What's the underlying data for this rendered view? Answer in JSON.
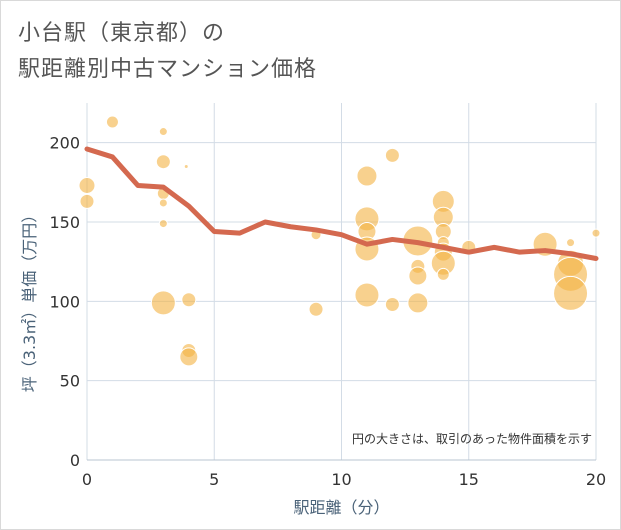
{
  "title_line1": "小台駅（東京都）の",
  "title_line2": "駅距離別中古マンション価格",
  "chart_data": {
    "type": "scatter",
    "xlabel": "駅距離（分）",
    "ylabel": "坪（3.3㎡）単価（万円）",
    "xlim": [
      0,
      20
    ],
    "ylim": [
      0,
      225
    ],
    "xticks": [
      0,
      5,
      10,
      15,
      20
    ],
    "yticks": [
      0,
      50,
      100,
      150,
      200
    ],
    "x_tick_labels": [
      "0",
      "5",
      "10",
      "15",
      "20"
    ],
    "y_tick_labels": [
      "0",
      "50",
      "100",
      "150",
      "200"
    ],
    "grid": true,
    "annotation": "円の大きさは、取引のあった物件面積を示す",
    "colors": {
      "bubble": "#f4b342",
      "line": "#d4694f",
      "grid": "#d3dce6",
      "axis_title": "#4a6278"
    },
    "bubbles": [
      {
        "x": 0,
        "y": 173,
        "s": 8
      },
      {
        "x": 0,
        "y": 163,
        "s": 7
      },
      {
        "x": 1,
        "y": 213,
        "s": 6
      },
      {
        "x": 3,
        "y": 207,
        "s": 4
      },
      {
        "x": 3,
        "y": 188,
        "s": 7
      },
      {
        "x": 3.9,
        "y": 185,
        "s": 2
      },
      {
        "x": 3,
        "y": 168,
        "s": 6
      },
      {
        "x": 3,
        "y": 162,
        "s": 4
      },
      {
        "x": 3,
        "y": 149,
        "s": 4
      },
      {
        "x": 3,
        "y": 99,
        "s": 12
      },
      {
        "x": 4,
        "y": 101,
        "s": 7
      },
      {
        "x": 4,
        "y": 69,
        "s": 7
      },
      {
        "x": 4,
        "y": 65,
        "s": 9
      },
      {
        "x": 9,
        "y": 142,
        "s": 5
      },
      {
        "x": 9,
        "y": 95,
        "s": 7
      },
      {
        "x": 11,
        "y": 179,
        "s": 10
      },
      {
        "x": 11,
        "y": 152,
        "s": 12
      },
      {
        "x": 11,
        "y": 144,
        "s": 9
      },
      {
        "x": 11,
        "y": 133,
        "s": 12
      },
      {
        "x": 11,
        "y": 104,
        "s": 12
      },
      {
        "x": 12,
        "y": 192,
        "s": 7
      },
      {
        "x": 12,
        "y": 98,
        "s": 7
      },
      {
        "x": 13,
        "y": 138,
        "s": 15
      },
      {
        "x": 13,
        "y": 122,
        "s": 7
      },
      {
        "x": 13,
        "y": 116,
        "s": 9
      },
      {
        "x": 13,
        "y": 99,
        "s": 10
      },
      {
        "x": 14,
        "y": 163,
        "s": 11
      },
      {
        "x": 14,
        "y": 153,
        "s": 10
      },
      {
        "x": 14,
        "y": 144,
        "s": 8
      },
      {
        "x": 14,
        "y": 137,
        "s": 6
      },
      {
        "x": 14,
        "y": 131,
        "s": 9
      },
      {
        "x": 14,
        "y": 124,
        "s": 12
      },
      {
        "x": 14,
        "y": 117,
        "s": 6
      },
      {
        "x": 15,
        "y": 134,
        "s": 7
      },
      {
        "x": 18,
        "y": 136,
        "s": 12
      },
      {
        "x": 19,
        "y": 137,
        "s": 4
      },
      {
        "x": 19,
        "y": 124,
        "s": 13
      },
      {
        "x": 19,
        "y": 117,
        "s": 17
      },
      {
        "x": 19,
        "y": 105,
        "s": 17
      },
      {
        "x": 20,
        "y": 143,
        "s": 4
      }
    ],
    "line": {
      "x": [
        0,
        1,
        2,
        3,
        4,
        5,
        6,
        7,
        8,
        9,
        10,
        11,
        12,
        13,
        14,
        15,
        16,
        17,
        18,
        19,
        20
      ],
      "y": [
        196,
        191,
        173,
        172,
        160,
        144,
        143,
        150,
        147,
        145,
        142,
        136,
        139,
        137,
        134,
        131,
        134,
        131,
        132,
        130,
        127
      ]
    }
  }
}
